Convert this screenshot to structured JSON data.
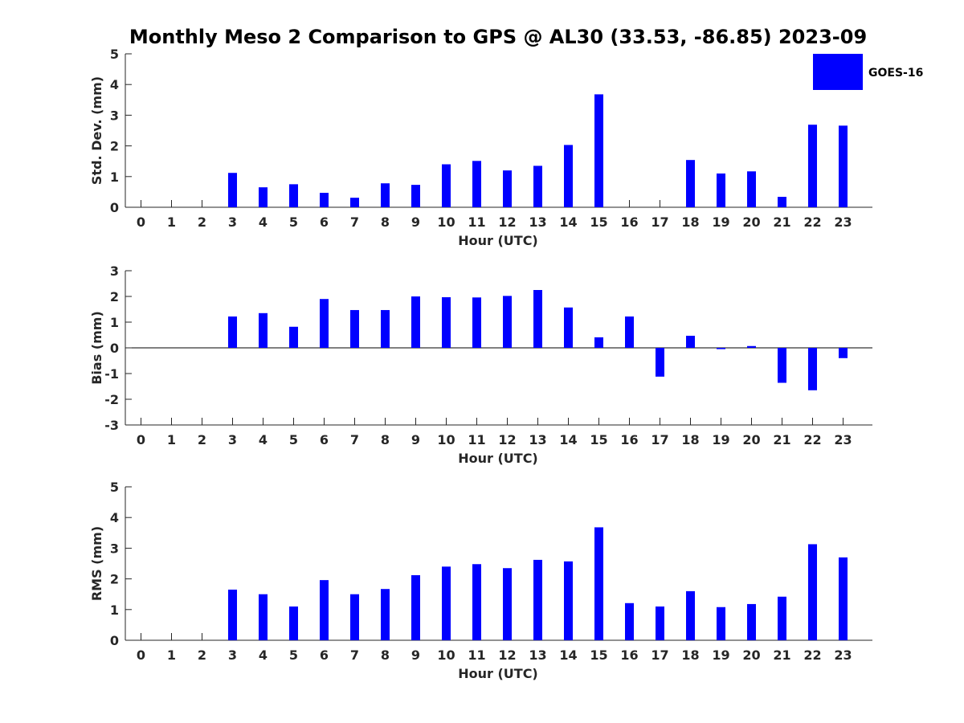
{
  "title": "Monthly Meso 2 Comparison to GPS @ AL30 (33.53, -86.85) 2023-09",
  "colors": {
    "bar": "#0000ff",
    "axis": "#262626"
  },
  "legend": {
    "label": "GOES-16",
    "placement": "top-right"
  },
  "chart_data": [
    {
      "type": "bar",
      "ylabel": "Std. Dev. (mm)",
      "xlabel": "Hour (UTC)",
      "ylim": [
        0,
        5
      ],
      "yticks": [
        0,
        1,
        2,
        3,
        4,
        5
      ],
      "categories": [
        "0",
        "1",
        "2",
        "3",
        "4",
        "5",
        "6",
        "7",
        "8",
        "9",
        "10",
        "11",
        "12",
        "13",
        "14",
        "15",
        "16",
        "17",
        "18",
        "19",
        "20",
        "21",
        "22",
        "23"
      ],
      "series": [
        {
          "name": "GOES-16",
          "values": [
            null,
            null,
            null,
            1.12,
            0.65,
            0.75,
            0.47,
            0.31,
            0.78,
            0.73,
            1.4,
            1.51,
            1.2,
            1.35,
            2.03,
            3.68,
            null,
            null,
            1.54,
            1.1,
            1.17,
            0.34,
            2.69,
            2.66
          ]
        }
      ],
      "grid": false
    },
    {
      "type": "bar",
      "ylabel": "Bias (mm)",
      "xlabel": "Hour (UTC)",
      "ylim": [
        -3,
        3
      ],
      "yticks": [
        -3,
        -2,
        -1,
        0,
        1,
        2,
        3
      ],
      "categories": [
        "0",
        "1",
        "2",
        "3",
        "4",
        "5",
        "6",
        "7",
        "8",
        "9",
        "10",
        "11",
        "12",
        "13",
        "14",
        "15",
        "16",
        "17",
        "18",
        "19",
        "20",
        "21",
        "22",
        "23"
      ],
      "series": [
        {
          "name": "GOES-16",
          "values": [
            null,
            null,
            null,
            1.22,
            1.35,
            0.82,
            1.9,
            1.47,
            1.47,
            2.0,
            1.97,
            1.96,
            2.02,
            2.25,
            1.57,
            0.41,
            1.22,
            -1.12,
            0.47,
            -0.05,
            0.07,
            -1.36,
            -1.65,
            -0.4
          ]
        }
      ],
      "grid": false
    },
    {
      "type": "bar",
      "ylabel": "RMS (mm)",
      "xlabel": "Hour (UTC)",
      "ylim": [
        0,
        5
      ],
      "yticks": [
        0,
        1,
        2,
        3,
        4,
        5
      ],
      "categories": [
        "0",
        "1",
        "2",
        "3",
        "4",
        "5",
        "6",
        "7",
        "8",
        "9",
        "10",
        "11",
        "12",
        "13",
        "14",
        "15",
        "16",
        "17",
        "18",
        "19",
        "20",
        "21",
        "22",
        "23"
      ],
      "series": [
        {
          "name": "GOES-16",
          "values": [
            null,
            null,
            null,
            1.65,
            1.5,
            1.1,
            1.96,
            1.5,
            1.67,
            2.12,
            2.4,
            2.48,
            2.35,
            2.62,
            2.57,
            3.68,
            1.21,
            1.1,
            1.6,
            1.08,
            1.18,
            1.42,
            3.13,
            2.7
          ]
        }
      ],
      "grid": false
    }
  ]
}
